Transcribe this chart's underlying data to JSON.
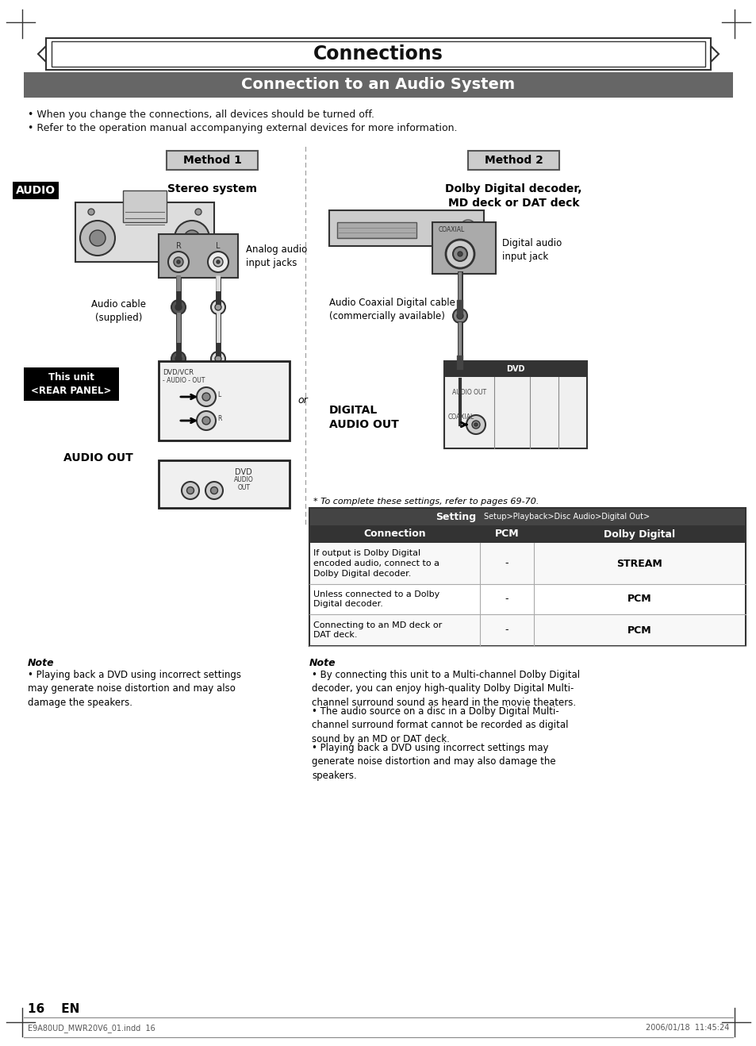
{
  "page_bg": "#ffffff",
  "title": "Connections",
  "subtitle": "Connection to an Audio System",
  "subtitle_bg": "#666666",
  "bullet1": "When you change the connections, all devices should be turned off.",
  "bullet2": "Refer to the operation manual accompanying external devices for more information.",
  "method1_label": "Method 1",
  "method1_title": "Stereo system",
  "method2_label": "Method 2",
  "method2_title": "Dolby Digital decoder,\nMD deck or DAT deck",
  "audio_label": "AUDIO",
  "this_unit_label": "This unit\n<REAR PANEL>",
  "analog_label": "Analog audio\ninput jacks",
  "audio_cable_label": "Audio cable\n(supplied)",
  "audio_out_label": "AUDIO OUT",
  "or_label": "or",
  "digital_label": "Digital audio\ninput jack",
  "coaxial_label": "Audio Coaxial Digital cable\n(commercially available)",
  "digital_audio_label": "DIGITAL\nAUDIO OUT",
  "note_left_title": "Note",
  "note_left_text": "Playing back a DVD using incorrect settings\nmay generate noise distortion and may also\ndamage the speakers.",
  "note_right_title": "Note",
  "note_right_complete": "* To complete these settings, refer to pages 69-70.",
  "note_right_b1": "By connecting this unit to a Multi-channel Dolby Digital\ndecoder, you can enjoy high-quality Dolby Digital Multi-\nchannel surround sound as heard in the movie theaters.",
  "note_right_b2": "The audio source on a disc in a Dolby Digital Multi-\nchannel surround format cannot be recorded as digital\nsound by an MD or DAT deck.",
  "note_right_b3": "Playing back a DVD using incorrect settings may\ngenerate noise distortion and may also damage the\nspeakers.",
  "table_header_setting": "Setting",
  "table_header_setup": "Setup>Playback>Disc Audio>Digital Out>",
  "table_col1": "Connection",
  "table_col2": "PCM",
  "table_col3": "Dolby Digital",
  "table_row1_c": "If output is Dolby Digital\nencoded audio, connect to a\nDolby Digital decoder.",
  "table_row1_v2": "-",
  "table_row1_v3": "STREAM",
  "table_row2_c": "Unless connected to a Dolby\nDigital decoder.",
  "table_row2_v2": "-",
  "table_row2_v3": "PCM",
  "table_row3_c": "Connecting to an MD deck or\nDAT deck.",
  "table_row3_v2": "-",
  "table_row3_v3": "PCM",
  "footer_left": "E9A80UD_MWR20V6_01.indd  16",
  "footer_right": "2006/01/18  11:45:24",
  "page_num": "16    EN"
}
